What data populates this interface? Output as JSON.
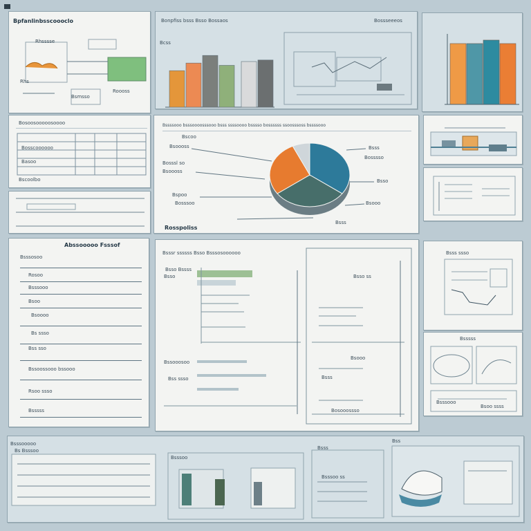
{
  "corner_mark": "corner-square",
  "top_left": {
    "title": "Bpfanlinbsscoooclo",
    "note1": "Rhsssse",
    "note2": "Rhs",
    "note3": "Bsmsso",
    "note4": "Roooss"
  },
  "top_center": {
    "title": "Bonpfiss bsss Bsso Bossaos",
    "right_title": "Bossseeeos",
    "axis": "Bcss"
  },
  "mid_left": {
    "row1": "Bosoosooooosoooo",
    "row2": "Bosscoooooo",
    "row3": "Basoo",
    "foot": "Bscoolbo"
  },
  "mid_center": {
    "header": "Bssssooo bsssoooosssooo bsss ssssoooo bsssso bossssss ssoosssoss bssssooo",
    "l1": "Bscoo",
    "l2": "Bsoooss",
    "l3": "Bosssl so",
    "l4": "Bsoooss",
    "l5": "Bspoo",
    "l6": "Bosssoo",
    "r1": "Bsss",
    "r2": "Bosssso",
    "r3": "Bsso",
    "r4": "Bsooo",
    "r5": "Bsss",
    "footer": "Rosspoliss"
  },
  "form": {
    "title": "Abssooooo Fsssof",
    "f1": "Bsssosoo",
    "f2": "Rosoo",
    "f3": "Bsssooo",
    "f4": "Bsoo",
    "f5": "Bsoooo",
    "f6": "Bs ssso",
    "f7": "Bss sso",
    "f8": "Bssoossooo bssooo",
    "f9": "Rsoo ssso",
    "f10": "Bsssss"
  },
  "center_bottom": {
    "title": "Bsssr ssssss Bsso Bsssosoooooo",
    "l1": "Bsso Bssss",
    "l2": "Bsso",
    "l3": "Bssooosoo",
    "l4": "Bss ssso",
    "r1": "Bsso ss",
    "r2": "Bsooo",
    "r3": "Bsss",
    "r4": "Bosooossso"
  },
  "right_col": {
    "t1": "Bsss ssso",
    "t2": "Bsssss",
    "t3": "Bsssooo",
    "t4": "Bsoo ssss"
  },
  "bottom": {
    "b1": "Bsssooooo",
    "b2": "Bs Bsssoo",
    "b3": "Bsss",
    "b4": "Bsssoo",
    "b5": "Bss",
    "b6": "Bsssoo ss"
  },
  "charts": [
    {
      "name": "top-center-bars",
      "type": "bar",
      "values": [
        0.48,
        0.58,
        0.68,
        0.55,
        0.6,
        0.62
      ],
      "colors": [
        "#e4963a",
        "#ec8a53",
        "#7b7f7c",
        "#8fb07a",
        "#d9dadb",
        "#6b6f70"
      ]
    },
    {
      "name": "top-right-bars",
      "type": "bar",
      "values": [
        0.88,
        0.88,
        0.93,
        0.88
      ],
      "colors": [
        "#ef9a46",
        "#4f97a7",
        "#2d8ba0",
        "#ea7e34"
      ]
    },
    {
      "name": "pie",
      "type": "pie",
      "values": [
        35,
        30,
        28,
        7
      ],
      "colors": [
        "#2d7a9a",
        "#476e6a",
        "#e77b2f",
        "#cfd6da"
      ]
    }
  ]
}
